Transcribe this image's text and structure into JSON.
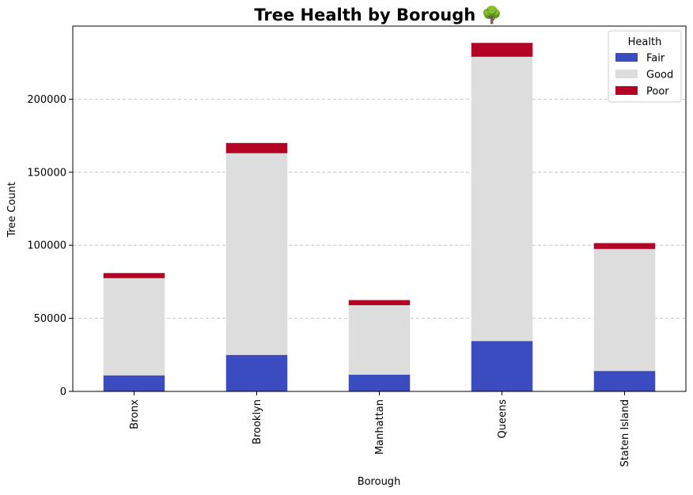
{
  "chart_data": {
    "type": "bar",
    "stacked": true,
    "title": "Tree Health by Borough 🌳",
    "xlabel": "Borough",
    "ylabel": "Tree Count",
    "categories": [
      "Bronx",
      "Brooklyn",
      "Manhattan",
      "Queens",
      "Staten Island"
    ],
    "series": [
      {
        "name": "Fair",
        "color": "#3b4cc0",
        "values": [
          11000,
          25000,
          11500,
          34500,
          14000
        ]
      },
      {
        "name": "Good",
        "color": "#dddddd",
        "values": [
          66500,
          138000,
          47500,
          194500,
          83500
        ]
      },
      {
        "name": "Poor",
        "color": "#b40426",
        "values": [
          3500,
          7000,
          3500,
          9500,
          4000
        ]
      }
    ],
    "ylim": [
      0,
      250000
    ],
    "yticks": [
      0,
      50000,
      100000,
      150000,
      200000
    ],
    "grid": "y-dashed",
    "legend": {
      "title": "Health",
      "position": "top-right"
    }
  }
}
